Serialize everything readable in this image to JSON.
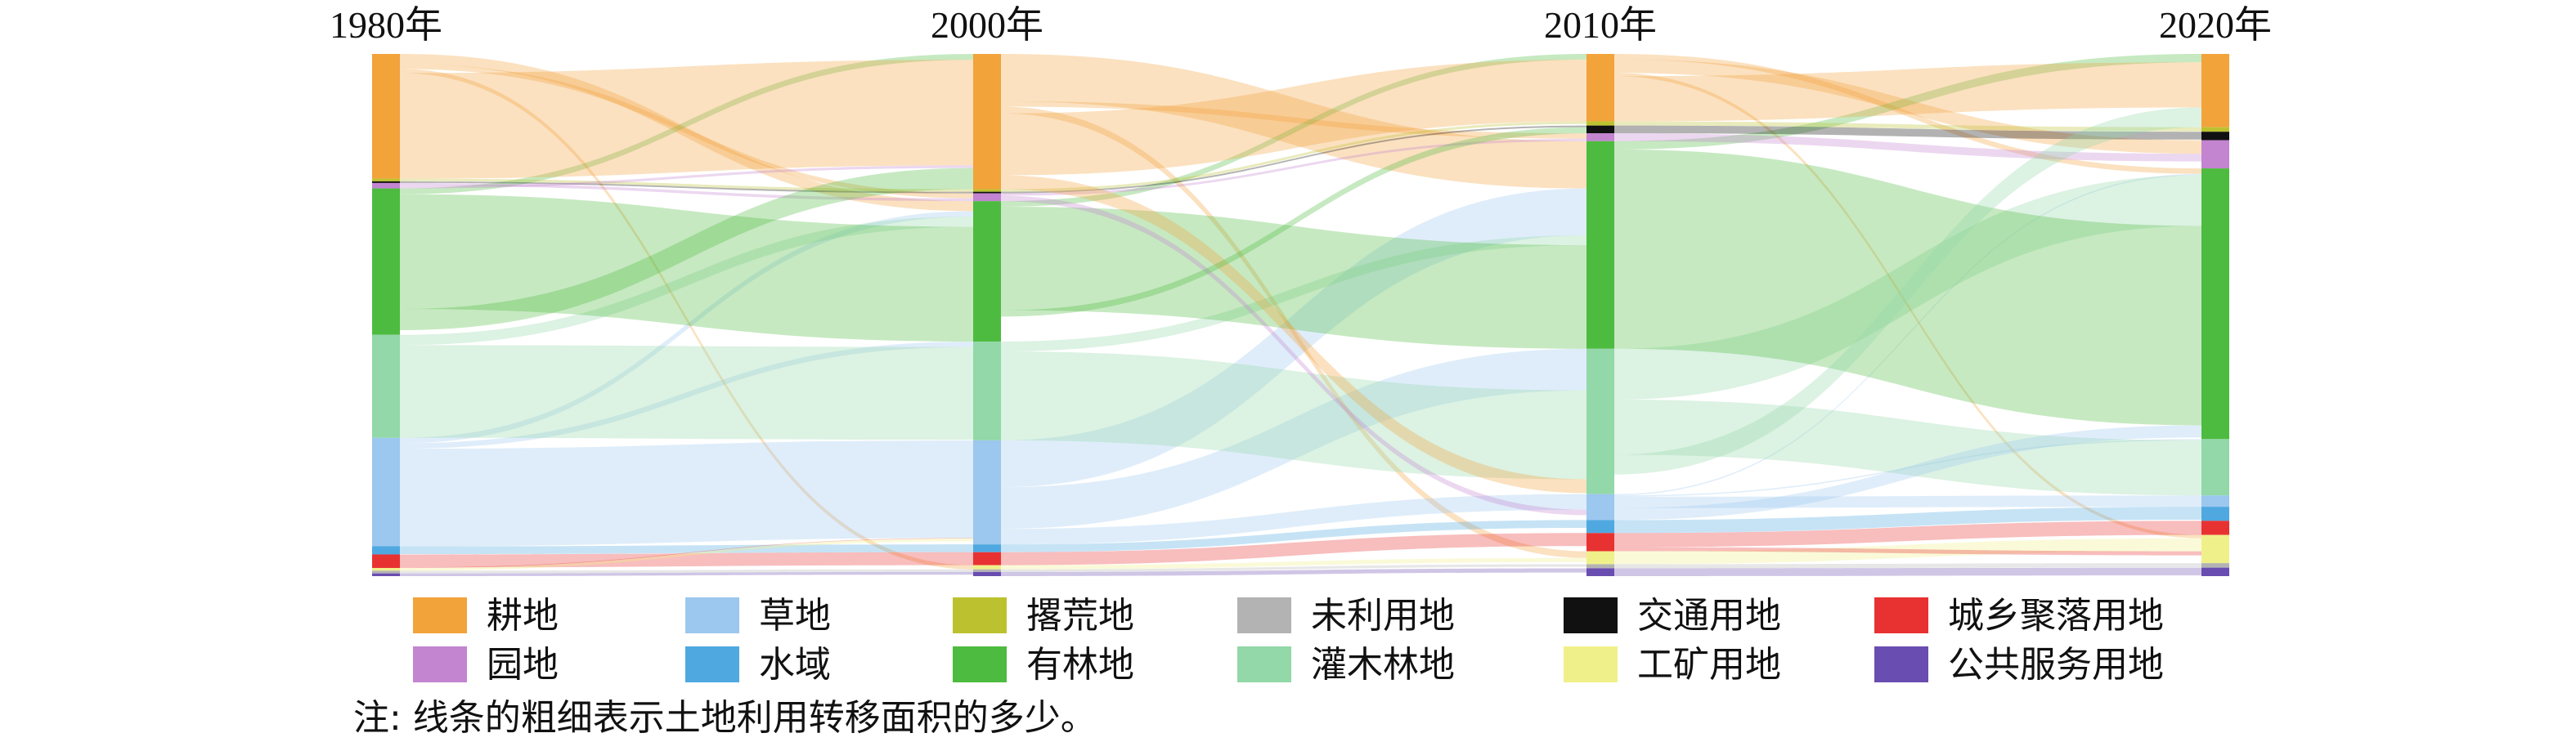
{
  "chart_data": {
    "type": "sankey",
    "title": "",
    "stages": [
      "1980年",
      "2000年",
      "2010年",
      "2020年"
    ],
    "categories": [
      {
        "name": "耕地",
        "color": "#F2A33A"
      },
      {
        "name": "园地",
        "color": "#C384D0"
      },
      {
        "name": "草地",
        "color": "#9CC7EE"
      },
      {
        "name": "水域",
        "color": "#4FA8E0"
      },
      {
        "name": "撂荒地",
        "color": "#BCC22F"
      },
      {
        "name": "有林地",
        "color": "#4DBB3F"
      },
      {
        "name": "未利用地",
        "color": "#B3B3B3"
      },
      {
        "name": "灌木林地",
        "color": "#92D8A8"
      },
      {
        "name": "交通用地",
        "color": "#111111"
      },
      {
        "name": "工矿用地",
        "color": "#F0F08A"
      },
      {
        "name": "城乡聚落用地",
        "color": "#E83232"
      },
      {
        "name": "公共服务用地",
        "color": "#6A4DB0"
      }
    ],
    "stage_values": {
      "1980年": {
        "耕地": 23,
        "园地": 1,
        "草地": 20,
        "水域": 1.5,
        "撂荒地": 0.5,
        "有林地": 27,
        "未利用地": 0.5,
        "灌木林地": 19,
        "交通用地": 0.3,
        "工矿用地": 0.5,
        "城乡聚落用地": 2.5,
        "公共服务用地": 0.5
      },
      "2000年": {
        "耕地": 26,
        "园地": 1.5,
        "草地": 20,
        "水域": 1.5,
        "撂荒地": 0.5,
        "有林地": 27,
        "未利用地": 0.5,
        "灌木林地": 19,
        "交通用地": 0.3,
        "工矿用地": 0.8,
        "城乡聚落用地": 2.5,
        "公共服务用地": 0.8
      },
      "2010年": {
        "耕地": 13,
        "园地": 1.5,
        "草地": 5,
        "水域": 2.5,
        "撂荒地": 0.8,
        "有林地": 40,
        "未利用地": 0.8,
        "灌木林地": 28,
        "交通用地": 1.5,
        "工矿用地": 2.5,
        "城乡聚落用地": 3.5,
        "公共服务用地": 1.5
      },
      "2020年": {
        "耕地": 13,
        "园地": 5,
        "草地": 2,
        "水域": 2.5,
        "撂荒地": 0.8,
        "有林地": 48,
        "未利用地": 0.8,
        "灌木林地": 10,
        "交通用地": 1.5,
        "工矿用地": 5,
        "城乡聚落用地": 2.5,
        "公共服务用地": 1.5
      }
    },
    "legend": {
      "rows": [
        [
          "耕地",
          "草地",
          "撂荒地",
          "未利用地",
          "交通用地",
          "城乡聚落用地"
        ],
        [
          "园地",
          "水域",
          "有林地",
          "灌木林地",
          "工矿用地",
          "公共服务用地"
        ]
      ],
      "placement": "bottom"
    },
    "note": "注: 线条的粗细表示土地利用转移面积的多少。"
  }
}
